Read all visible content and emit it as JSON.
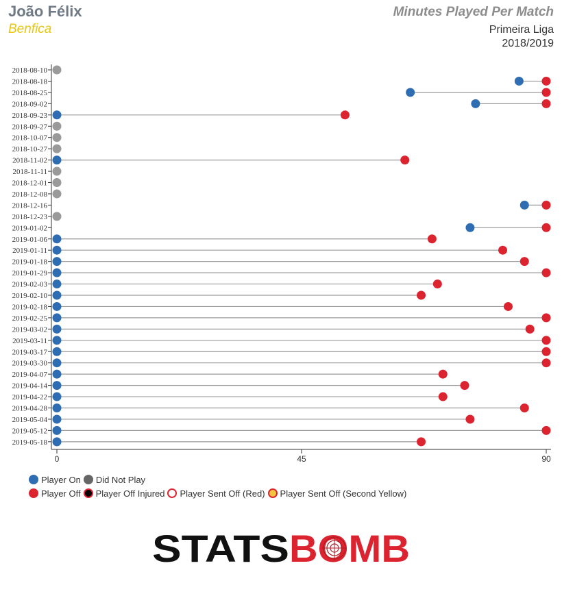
{
  "header": {
    "player": "João Félix",
    "team": "Benfica",
    "title": "Minutes Played Per Match",
    "competition": "Primeira Liga",
    "season": "2018/2019"
  },
  "colors": {
    "on": "#2f6db3",
    "off": "#dc2430",
    "dnp": "#9a9a9a",
    "line": "#9a9a9a",
    "player_name": "#6f7a86",
    "team": "#e6c614"
  },
  "chart_data": {
    "type": "dumbbell",
    "xlim": [
      0,
      90
    ],
    "xticks": [
      "0",
      "45",
      "90"
    ],
    "matches": [
      {
        "date": "2018-08-10",
        "on": null,
        "off": null
      },
      {
        "date": "2018-08-18",
        "on": 85,
        "off": 90
      },
      {
        "date": "2018-08-25",
        "on": 65,
        "off": 90
      },
      {
        "date": "2018-09-02",
        "on": 77,
        "off": 90
      },
      {
        "date": "2018-09-23",
        "on": 0,
        "off": 53
      },
      {
        "date": "2018-09-27",
        "on": null,
        "off": null
      },
      {
        "date": "2018-10-07",
        "on": null,
        "off": null
      },
      {
        "date": "2018-10-27",
        "on": null,
        "off": null
      },
      {
        "date": "2018-11-02",
        "on": 0,
        "off": 64
      },
      {
        "date": "2018-11-11",
        "on": null,
        "off": null
      },
      {
        "date": "2018-12-01",
        "on": null,
        "off": null
      },
      {
        "date": "2018-12-08",
        "on": null,
        "off": null
      },
      {
        "date": "2018-12-16",
        "on": 86,
        "off": 90
      },
      {
        "date": "2018-12-23",
        "on": null,
        "off": null
      },
      {
        "date": "2019-01-02",
        "on": 76,
        "off": 90
      },
      {
        "date": "2019-01-06",
        "on": 0,
        "off": 69
      },
      {
        "date": "2019-01-11",
        "on": 0,
        "off": 82
      },
      {
        "date": "2019-01-18",
        "on": 0,
        "off": 86
      },
      {
        "date": "2019-01-29",
        "on": 0,
        "off": 90
      },
      {
        "date": "2019-02-03",
        "on": 0,
        "off": 70
      },
      {
        "date": "2019-02-10",
        "on": 0,
        "off": 67
      },
      {
        "date": "2019-02-18",
        "on": 0,
        "off": 83
      },
      {
        "date": "2019-02-25",
        "on": 0,
        "off": 90
      },
      {
        "date": "2019-03-02",
        "on": 0,
        "off": 87
      },
      {
        "date": "2019-03-11",
        "on": 0,
        "off": 90
      },
      {
        "date": "2019-03-17",
        "on": 0,
        "off": 90
      },
      {
        "date": "2019-03-30",
        "on": 0,
        "off": 90
      },
      {
        "date": "2019-04-07",
        "on": 0,
        "off": 71
      },
      {
        "date": "2019-04-14",
        "on": 0,
        "off": 75
      },
      {
        "date": "2019-04-22",
        "on": 0,
        "off": 71
      },
      {
        "date": "2019-04-28",
        "on": 0,
        "off": 86
      },
      {
        "date": "2019-05-04",
        "on": 0,
        "off": 76
      },
      {
        "date": "2019-05-12",
        "on": 0,
        "off": 90
      },
      {
        "date": "2019-05-18",
        "on": 0,
        "off": 67
      }
    ]
  },
  "legend": {
    "row1": [
      {
        "label": "Player On",
        "style": "on"
      },
      {
        "label": "Did Not Play",
        "style": "dnp-dark"
      }
    ],
    "row2": [
      {
        "label": "Player Off",
        "style": "off"
      },
      {
        "label": "Player Off Injured",
        "style": "injured"
      },
      {
        "label": "Player Sent Off (Red)",
        "style": "red-card"
      },
      {
        "label": "Player Sent Off (Second Yellow)",
        "style": "second-yellow"
      }
    ]
  },
  "logo": {
    "part1": "STATS",
    "part2": "BOMB"
  }
}
